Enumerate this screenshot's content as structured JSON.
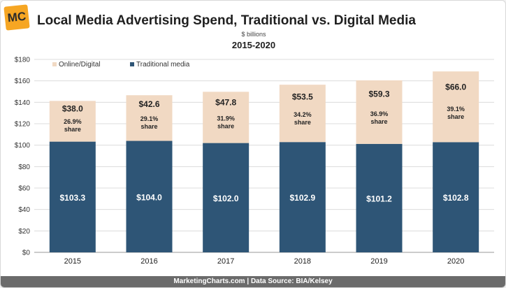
{
  "logo": "MC",
  "footer": {
    "site": "MarketingCharts.com",
    "separator": " | ",
    "source": "Data Source: BIA/Kelsey"
  },
  "chart_data": {
    "type": "bar",
    "stacked": true,
    "title": "Local Media Advertising Spend, Traditional vs. Digital Media",
    "subtitle": "$ billions",
    "period": "2015-2020",
    "categories": [
      "2015",
      "2016",
      "2017",
      "2018",
      "2019",
      "2020"
    ],
    "ylim": [
      0,
      180
    ],
    "yticks": [
      0,
      20,
      40,
      60,
      80,
      100,
      120,
      140,
      160,
      180
    ],
    "ytick_labels": [
      "$0",
      "$20",
      "$40",
      "$60",
      "$80",
      "$100",
      "$120",
      "$140",
      "$160",
      "$180"
    ],
    "grid": true,
    "legend_position": "top-left",
    "series": [
      {
        "name": "Traditional media",
        "color": "#2e5576",
        "values": [
          103.3,
          104.0,
          102.0,
          102.9,
          101.2,
          102.8
        ],
        "labels": [
          "$103.3",
          "$104.0",
          "$102.0",
          "$102.9",
          "$101.2",
          "$102.8"
        ]
      },
      {
        "name": "Online/Digital",
        "color": "#f1d9c3",
        "values": [
          38.0,
          42.6,
          47.8,
          53.5,
          59.3,
          66.0
        ],
        "labels": [
          "$38.0",
          "$42.6",
          "$47.8",
          "$53.5",
          "$59.3",
          "$66.0"
        ],
        "share_labels": [
          "26.9%",
          "29.1%",
          "31.9%",
          "34.2%",
          "36.9%",
          "39.1%"
        ],
        "share_suffix": "share"
      }
    ]
  }
}
